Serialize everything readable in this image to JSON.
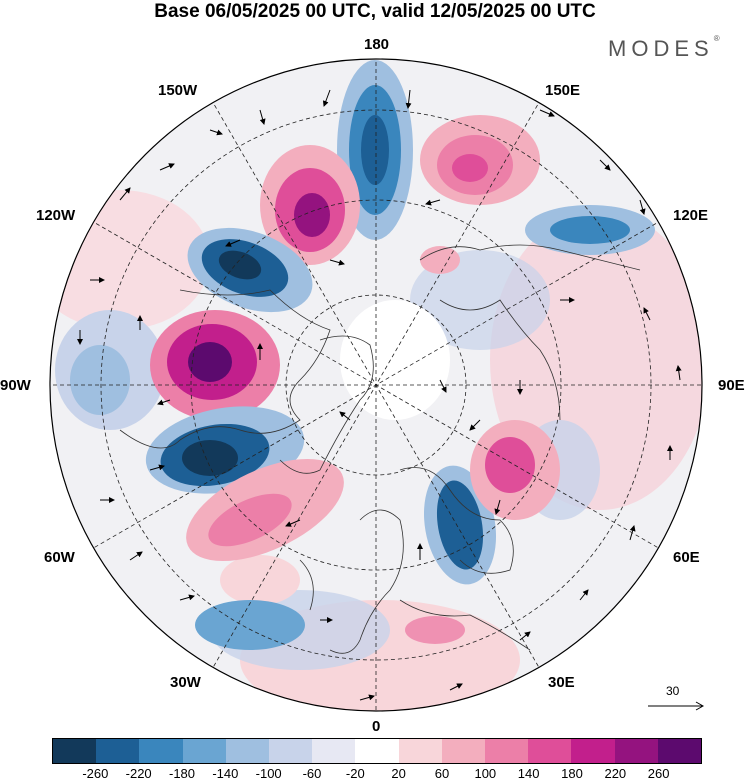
{
  "title": "Base 06/05/2025 00 UTC, valid 12/05/2025 00 UTC",
  "brand": "MODES",
  "brand_mark": "®",
  "map": {
    "projection": "north-polar-stereographic",
    "longitude_labels": {
      "top": "180",
      "bottom": "0",
      "left": "90W",
      "right": "90E",
      "upper_left_1": "150W",
      "upper_left_2": "120W",
      "upper_right_1": "150E",
      "upper_right_2": "120E",
      "lower_left_1": "60W",
      "lower_left_2": "30W",
      "lower_right_1": "60E",
      "lower_right_2": "30E"
    },
    "reference_vector": "30"
  },
  "colorbar": {
    "colors": [
      "#12395a",
      "#1d5f95",
      "#3a86bd",
      "#6aa5d2",
      "#9fbfe0",
      "#c8d3ea",
      "#e7e8f3",
      "#ffffff",
      "#f8d6da",
      "#f3aebe",
      "#ec7fa8",
      "#df4e99",
      "#c21f8c",
      "#94137f",
      "#5c0a6e"
    ],
    "ticks": [
      "-260",
      "-220",
      "-180",
      "-140",
      "-100",
      "-60",
      "-20",
      "20",
      "60",
      "100",
      "140",
      "180",
      "220",
      "260"
    ]
  }
}
